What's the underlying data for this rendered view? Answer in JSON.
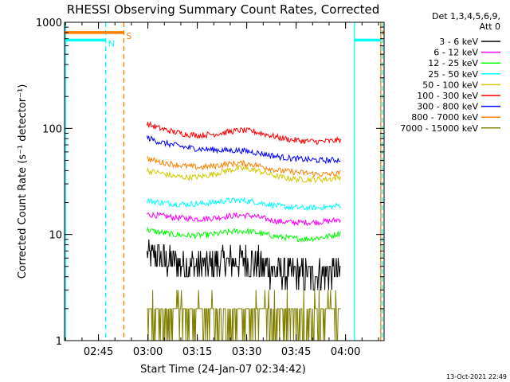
{
  "chart_data": {
    "type": "line",
    "title": "RHESSI Observing Summary Count Rates, Corrected",
    "xlabel": "Start Time (24-Jan-07 02:34:42)",
    "ylabel": "Corrected Count Rate (s⁻¹ detector⁻¹)",
    "yscale": "log",
    "ylim": [
      1,
      1000
    ],
    "xlim_minutes": [
      0,
      97
    ],
    "x_ticks": [
      {
        "label": "02:45",
        "minute": 10.3
      },
      {
        "label": "03:00",
        "minute": 25.3
      },
      {
        "label": "03:15",
        "minute": 40.3
      },
      {
        "label": "03:30",
        "minute": 55.3
      },
      {
        "label": "03:45",
        "minute": 70.3
      },
      {
        "label": "04:00",
        "minute": 85.3
      }
    ],
    "y_ticks": [
      {
        "label": "1",
        "value": 1
      },
      {
        "label": "10",
        "value": 10
      },
      {
        "label": "100",
        "value": 100
      },
      {
        "label": "1000",
        "value": 1000
      }
    ],
    "legend_header": [
      "Det 1,3,4,5,6,9,",
      "Att 0"
    ],
    "series": [
      {
        "name": "3 - 6 keV",
        "color": "#000000",
        "values": [
          6.5,
          6.0,
          5.5,
          5.2,
          5.0,
          5.2,
          5.5,
          5.7,
          5.6,
          5.0,
          4.5,
          4.2,
          4.2,
          4.3,
          4.4,
          4.5
        ]
      },
      {
        "name": "6 - 12 keV",
        "color": "#ff00ff",
        "values": [
          15.5,
          15.0,
          14.5,
          14.2,
          14.0,
          14.3,
          14.8,
          15.2,
          15.0,
          14.0,
          13.3,
          13.0,
          13.0,
          13.1,
          13.4,
          14.0
        ]
      },
      {
        "name": "12 - 25 keV",
        "color": "#00ff00",
        "values": [
          11.0,
          10.5,
          10.0,
          9.8,
          9.8,
          10.0,
          10.5,
          10.8,
          10.6,
          10.0,
          9.5,
          9.2,
          9.1,
          9.3,
          9.7,
          10.5
        ]
      },
      {
        "name": "25 - 50 keV",
        "color": "#00ffff",
        "values": [
          21.0,
          20.0,
          19.5,
          19.3,
          19.5,
          20.0,
          20.8,
          21.0,
          20.5,
          19.5,
          18.5,
          18.0,
          17.8,
          17.9,
          18.2,
          19.0
        ]
      },
      {
        "name": "50 - 100 keV",
        "color": "#d4c800",
        "values": [
          40.0,
          38.0,
          35.5,
          34.5,
          35.0,
          37.0,
          40.0,
          42.0,
          41.0,
          38.0,
          35.0,
          33.5,
          33.0,
          33.0,
          33.5,
          35.0
        ]
      },
      {
        "name": "100 - 300 keV",
        "color": "#ff0000",
        "values": [
          110,
          100,
          93,
          88,
          86,
          88,
          92,
          96,
          94,
          88,
          82,
          78,
          76,
          75,
          76,
          78
        ]
      },
      {
        "name": "300 - 800 keV",
        "color": "#0000ff",
        "values": [
          82,
          74,
          70,
          66,
          64,
          63,
          62,
          62,
          60,
          57,
          54,
          52,
          51,
          50,
          50,
          51
        ]
      },
      {
        "name": "800 - 7000 keV",
        "color": "#ff8000",
        "values": [
          52,
          48,
          46,
          44,
          43,
          44,
          46,
          47,
          46,
          43,
          40,
          39,
          38,
          37,
          37,
          38
        ]
      },
      {
        "name": "7000 - 15000 keV",
        "color": "#808000",
        "values": [
          2.2,
          2.0,
          2.0,
          2.0,
          2.0,
          2.0,
          2.0,
          2.2,
          2.2,
          2.0,
          2.0,
          2.0,
          2.0,
          2.0,
          2.0,
          2.0
        ]
      }
    ],
    "series_x_minutes": [
      25,
      29,
      33,
      37,
      41,
      45,
      49,
      53,
      57,
      61,
      65,
      69,
      73,
      77,
      81,
      84
    ],
    "flags": [
      {
        "label": "S",
        "color": "#ff8000",
        "bar_level": 800,
        "segments": [
          [
            0,
            18
          ],
          [
            96.5,
            97
          ]
        ]
      },
      {
        "label": "N",
        "color": "#00ffff",
        "bar_level": 680,
        "segments": [
          [
            0,
            12.5
          ],
          [
            88,
            96
          ]
        ]
      }
    ],
    "vertical_markers": [
      {
        "color": "#00ffff",
        "style": "solid",
        "minute": 0.3
      },
      {
        "color": "#00ffff",
        "style": "dashed",
        "minute": 12.5
      },
      {
        "color": "#ff8000",
        "style": "dashed",
        "minute": 18
      },
      {
        "color": "#00ffff",
        "style": "solid",
        "minute": 88
      },
      {
        "color": "#ff8000",
        "style": "solid",
        "minute": 96
      },
      {
        "color": "#00ffff",
        "style": "dashed",
        "minute": 96.5
      }
    ]
  },
  "footer": {
    "timestamp": "13-Oct-2021 22:49"
  }
}
